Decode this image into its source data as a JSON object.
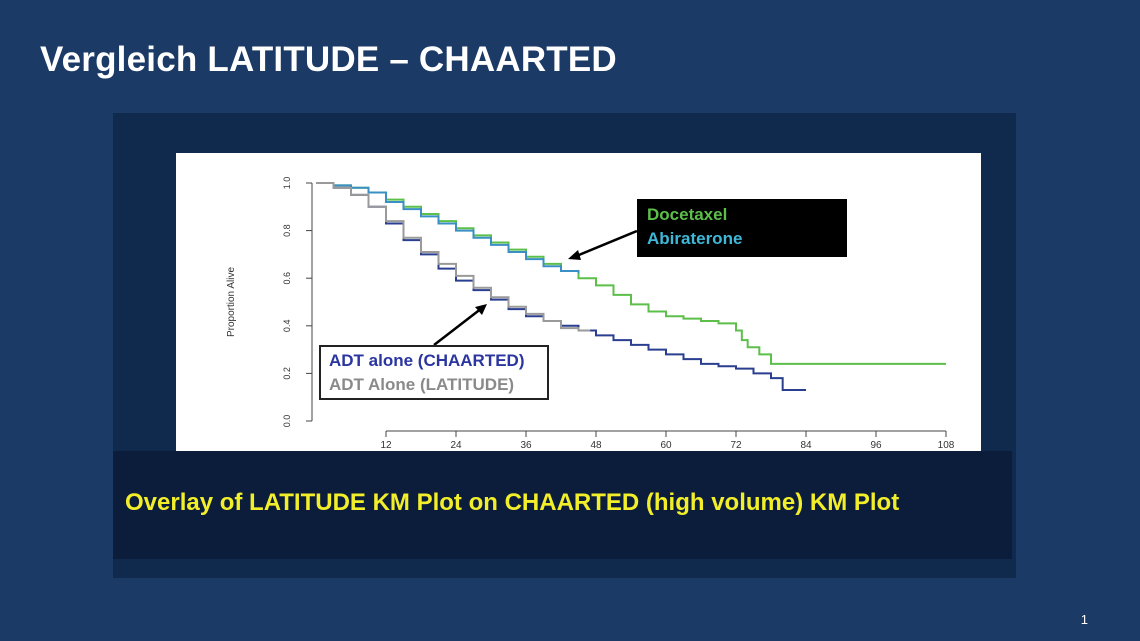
{
  "slide": {
    "title": "Vergleich LATITUDE – CHAARTED",
    "page_number": "1"
  },
  "figure": {
    "caption": "Overlay of LATITUDE KM Plot on CHAARTED (high volume) KM Plot",
    "legend_treatment": [
      "Docetaxel",
      "Abiraterone"
    ],
    "legend_adt": [
      "ADT alone (CHAARTED)",
      "ADT Alone (LATITUDE)"
    ]
  },
  "chart_data": {
    "type": "line",
    "ylabel": "Proportion Alive",
    "xlabel": "",
    "xlim": [
      0,
      108
    ],
    "ylim": [
      0,
      1
    ],
    "x_ticks": [
      12,
      24,
      36,
      48,
      60,
      72,
      84,
      96,
      108
    ],
    "y_ticks": [
      "0.0",
      "0.2",
      "0.4",
      "0.6",
      "0.8",
      "1.0"
    ],
    "colors": {
      "docetaxel": "#5cbf4a",
      "abiraterone": "#3a8fc4",
      "adt_chaarted": "#2a3f8f",
      "adt_latitude": "#9a9a9a"
    },
    "series": [
      {
        "name": "Docetaxel",
        "color": "#5cbf4a",
        "x": [
          0,
          3,
          6,
          9,
          12,
          15,
          18,
          21,
          24,
          27,
          30,
          33,
          36,
          39,
          42,
          45,
          48,
          51,
          54,
          57,
          60,
          63,
          66,
          69,
          72,
          73,
          74,
          76,
          78,
          108
        ],
        "y": [
          1.0,
          0.99,
          0.98,
          0.96,
          0.93,
          0.9,
          0.87,
          0.84,
          0.81,
          0.78,
          0.75,
          0.72,
          0.69,
          0.66,
          0.63,
          0.6,
          0.57,
          0.53,
          0.49,
          0.46,
          0.44,
          0.43,
          0.42,
          0.41,
          0.38,
          0.34,
          0.31,
          0.28,
          0.24,
          0.24
        ]
      },
      {
        "name": "Abiraterone",
        "color": "#3a8fc4",
        "x": [
          0,
          3,
          6,
          9,
          12,
          15,
          18,
          21,
          24,
          27,
          30,
          33,
          36,
          39,
          42,
          45
        ],
        "y": [
          1.0,
          0.99,
          0.98,
          0.96,
          0.92,
          0.89,
          0.86,
          0.83,
          0.8,
          0.77,
          0.74,
          0.71,
          0.68,
          0.65,
          0.63,
          0.62
        ]
      },
      {
        "name": "ADT alone (CHAARTED)",
        "color": "#2a3f8f",
        "x": [
          0,
          3,
          6,
          9,
          12,
          15,
          18,
          21,
          24,
          27,
          30,
          33,
          36,
          39,
          42,
          45,
          48,
          51,
          54,
          57,
          60,
          63,
          66,
          69,
          72,
          75,
          78,
          80,
          84
        ],
        "y": [
          1.0,
          0.98,
          0.95,
          0.9,
          0.83,
          0.76,
          0.7,
          0.64,
          0.59,
          0.55,
          0.51,
          0.47,
          0.44,
          0.42,
          0.4,
          0.38,
          0.36,
          0.34,
          0.32,
          0.3,
          0.28,
          0.26,
          0.24,
          0.23,
          0.22,
          0.2,
          0.18,
          0.13,
          0.13
        ]
      },
      {
        "name": "ADT Alone (LATITUDE)",
        "color": "#9a9a9a",
        "x": [
          0,
          3,
          6,
          9,
          12,
          15,
          18,
          21,
          24,
          27,
          30,
          33,
          36,
          39,
          42,
          45,
          47
        ],
        "y": [
          1.0,
          0.98,
          0.95,
          0.9,
          0.84,
          0.77,
          0.71,
          0.66,
          0.61,
          0.56,
          0.52,
          0.48,
          0.45,
          0.42,
          0.39,
          0.38,
          0.38
        ]
      }
    ]
  }
}
